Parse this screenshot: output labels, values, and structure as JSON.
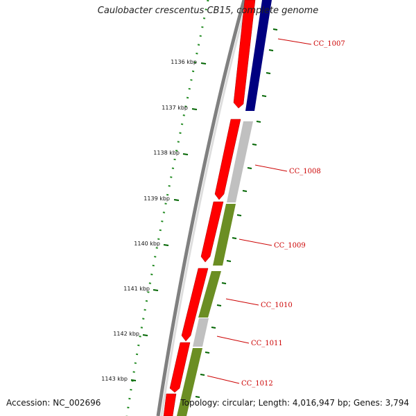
{
  "title": "Caulobacter crescentus CB15, complete genome",
  "footer": {
    "accession": "Accession: NC_002696",
    "summary": "Topology: circular; Length: 4,016,947 bp; Genes: 3,794"
  },
  "colors": {
    "backbone": "#808080",
    "forward": "#ff0000",
    "reverse_protein": "#000080",
    "reverse_other": "#c0c0c0",
    "reverse_green": "#6b8e23",
    "ticks": "#006400",
    "label_line": "#cc0000",
    "label_text": "#cc0000"
  },
  "ruler": {
    "unit": "kbp",
    "labels": [
      "1136 kbp",
      "1137 kbp",
      "1138 kbp",
      "1139 kbp",
      "1140 kbp",
      "1141 kbp",
      "1142 kbp",
      "1143 kbp"
    ]
  },
  "gene_labels": [
    "CC_1007",
    "CC_1008",
    "CC_1009",
    "CC_1010",
    "CC_1011",
    "CC_1012"
  ]
}
